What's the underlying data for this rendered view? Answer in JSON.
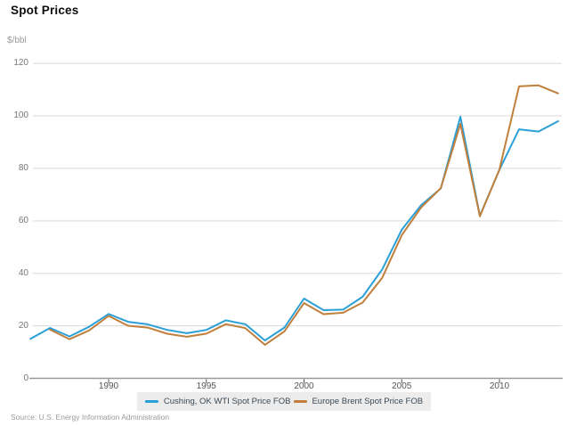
{
  "page": {
    "title": "Spot Prices",
    "source": "Source: U.S. Energy Information Administration"
  },
  "chart_data": {
    "type": "line",
    "title": "Spot Prices",
    "unit_label": "$/bbl",
    "xlabel": "",
    "ylabel": "$/bbl",
    "xlim": [
      1986,
      2013.3
    ],
    "ylim": [
      0,
      132
    ],
    "x_ticks": [
      1990,
      1995,
      2000,
      2005,
      2010
    ],
    "y_ticks": [
      0,
      20,
      40,
      60,
      80,
      100,
      120
    ],
    "grid": "horizontal",
    "legend_position": "bottom",
    "series": [
      {
        "name": "Cushing, OK WTI Spot Price FOB",
        "color": "#2b9fd7",
        "start_year": 1986,
        "values": [
          15.05,
          19.2,
          15.97,
          19.64,
          24.53,
          21.54,
          20.58,
          18.43,
          17.2,
          18.43,
          22.12,
          20.61,
          14.42,
          19.34,
          30.38,
          25.98,
          26.18,
          31.08,
          41.51,
          56.64,
          66.05,
          72.34,
          99.67,
          61.95,
          79.48,
          94.88,
          94.05,
          97.98
        ]
      },
      {
        "name": "Europe Brent Spot Price FOB",
        "color": "#c17f3c",
        "start_year": 1987,
        "values": [
          18.53,
          14.91,
          18.23,
          23.76,
          20.04,
          19.32,
          16.97,
          15.82,
          17.02,
          20.64,
          19.11,
          12.76,
          17.9,
          28.66,
          24.46,
          24.99,
          28.85,
          38.26,
          54.57,
          65.16,
          72.44,
          96.94,
          61.74,
          79.61,
          111.26,
          111.63,
          108.56
        ]
      }
    ]
  },
  "colors": {
    "gridline": "#d9d9d9",
    "axis_line": "#999999",
    "tick_mark": "#555555",
    "legend_background": "#ececec"
  }
}
